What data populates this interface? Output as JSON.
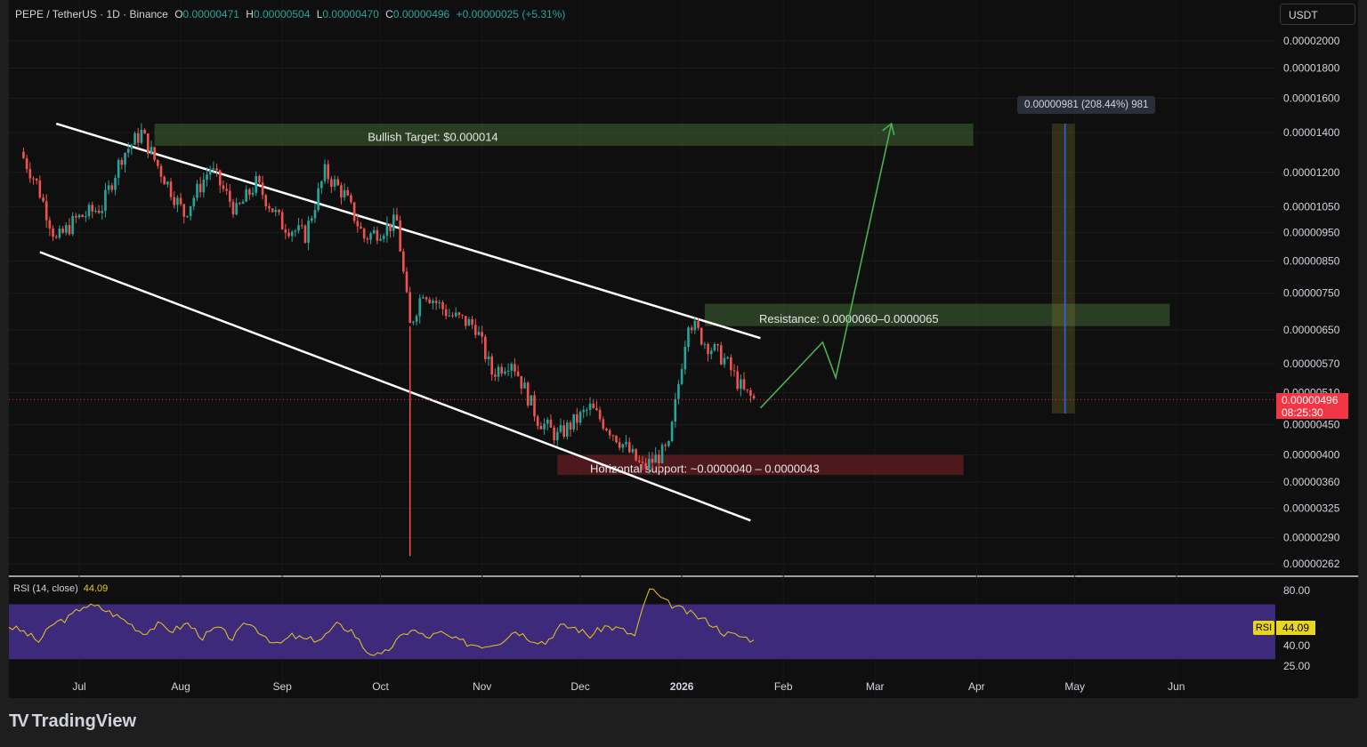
{
  "header": {
    "symbol": "PEPE / TetherUS · 1D · Binance",
    "open_label": "O",
    "open": "0.00000471",
    "high_label": "H",
    "high": "0.00000504",
    "low_label": "L",
    "low": "0.00000470",
    "close_label": "C",
    "close": "0.00000496",
    "change": "+0.00000025 (+5.31%)"
  },
  "currency_button": "USDT",
  "colors": {
    "up": "#26a69a",
    "down": "#ef5350",
    "accent_red": "#f23645",
    "rsi_line": "#e9c91b",
    "rsi_band": "#3d2a7a",
    "projection": "#4caf50"
  },
  "current_price": {
    "value": "0.00000496",
    "countdown": "08:25:30"
  },
  "chart_data": {
    "type": "candlestick",
    "scale": "log",
    "y_ticks": [
      "0.00002000",
      "0.00001800",
      "0.00001600",
      "0.00001400",
      "0.00001200",
      "0.00001050",
      "0.00000950",
      "0.00000850",
      "0.00000750",
      "0.00000650",
      "0.00000570",
      "0.00000510",
      "0.00000450",
      "0.00000400",
      "0.00000360",
      "0.00000325",
      "0.00000290",
      "0.00000262"
    ],
    "x_ticks": [
      "Jul",
      "Aug",
      "Sep",
      "Oct",
      "Nov",
      "Dec",
      "2026",
      "Feb",
      "Mar",
      "Apr",
      "May",
      "Jun"
    ],
    "close_path": [
      [
        "2025-06-13",
        1.3e-05
      ],
      [
        "2025-06-18",
        1.15e-05
      ],
      [
        "2025-06-24",
        9.2e-06
      ],
      [
        "2025-06-30",
        1e-05
      ],
      [
        "2025-07-08",
        1.05e-05
      ],
      [
        "2025-07-14",
        1.28e-05
      ],
      [
        "2025-07-20",
        1.4e-05
      ],
      [
        "2025-07-24",
        1.26e-05
      ],
      [
        "2025-08-02",
        1.02e-05
      ],
      [
        "2025-08-10",
        1.22e-05
      ],
      [
        "2025-08-18",
        1.03e-05
      ],
      [
        "2025-08-24",
        1.15e-05
      ],
      [
        "2025-09-01",
        9.8e-06
      ],
      [
        "2025-09-08",
        9.4e-06
      ],
      [
        "2025-09-14",
        1.2e-05
      ],
      [
        "2025-09-20",
        1.1e-05
      ],
      [
        "2025-09-26",
        9.3e-06
      ],
      [
        "2025-10-06",
        9.9e-06
      ],
      [
        "2025-10-10",
        6.6e-06
      ],
      [
        "2025-10-14",
        7.6e-06
      ],
      [
        "2025-10-22",
        6.9e-06
      ],
      [
        "2025-10-30",
        6.6e-06
      ],
      [
        "2025-11-04",
        5.5e-06
      ],
      [
        "2025-11-10",
        5.8e-06
      ],
      [
        "2025-11-18",
        4.6e-06
      ],
      [
        "2025-11-24",
        4.3e-06
      ],
      [
        "2025-12-04",
        4.8e-06
      ],
      [
        "2025-12-12",
        4.3e-06
      ],
      [
        "2025-12-20",
        3.8e-06
      ],
      [
        "2025-12-28",
        4.1e-06
      ],
      [
        "2026-01-03",
        6.8e-06
      ],
      [
        "2026-01-08",
        6.2e-06
      ],
      [
        "2026-01-14",
        5.8e-06
      ],
      [
        "2026-01-20",
        5.1e-06
      ],
      [
        "2026-01-23",
        4.96e-06
      ]
    ],
    "wick_low": [
      "2025-10-10",
      2.7e-06
    ],
    "annotations": [
      {
        "label": "Bullish Target: $0.000014",
        "kind": "zone"
      },
      {
        "label": "Resistance: 0.0000060–0.0000065",
        "kind": "zone"
      },
      {
        "label": "Horizontal support: ~0.0000040 – 0.0000043",
        "kind": "zone"
      }
    ],
    "measure_label": "0.00000981 (208.44%) 981",
    "channel_upper": [
      [
        "2025-06-24",
        1.45e-05
      ],
      [
        "2026-01-25",
        6.3e-06
      ]
    ],
    "channel_lower": [
      [
        "2025-06-19",
        8.8e-06
      ],
      [
        "2026-01-22",
        3.1e-06
      ]
    ],
    "projection": [
      [
        "2026-01-25",
        4.8e-06
      ],
      [
        "2026-02-13",
        6.2e-06
      ],
      [
        "2026-02-17",
        5.4e-06
      ],
      [
        "2026-03-06",
        1.45e-05
      ]
    ],
    "rsi": {
      "label": "RSI (14, close)",
      "value": "44.09",
      "tag_label": "RSI",
      "y_ticks": [
        "80.00",
        "40.00",
        "25.00"
      ],
      "series": [
        54,
        50,
        43,
        56,
        60,
        69,
        68,
        63,
        57,
        49,
        55,
        51,
        56,
        46,
        53,
        45,
        57,
        49,
        40,
        47,
        44,
        45,
        55,
        51,
        36,
        32,
        43,
        52,
        46,
        49,
        44,
        41,
        40,
        43,
        51,
        45,
        42,
        54,
        53,
        47,
        54,
        52,
        47,
        82,
        72,
        67,
        62,
        57,
        49,
        47,
        44
      ]
    }
  },
  "footer": {
    "brand": "TradingView"
  }
}
